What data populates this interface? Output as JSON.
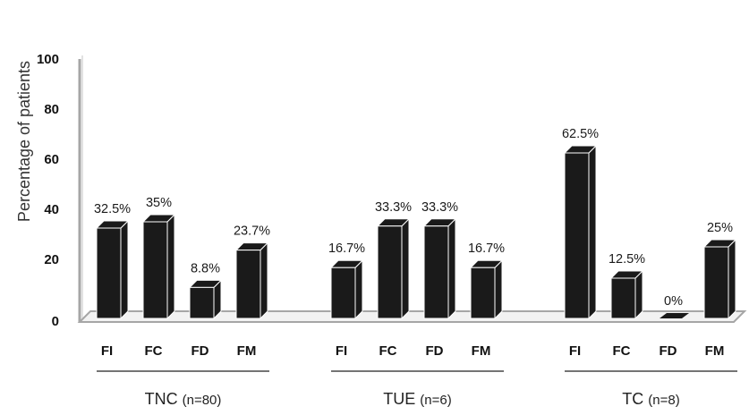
{
  "chart_data": {
    "type": "bar",
    "ylabel": "Percentage of patients",
    "ylim": [
      0,
      100
    ],
    "yticks": [
      0,
      20,
      40,
      60,
      80,
      100
    ],
    "grid": false,
    "style": "3d-bars",
    "bar_color": "#1a1a1a",
    "axis_color": "#a6a6a6",
    "groups": [
      {
        "label": "TNC",
        "n_label": "(n=80)",
        "categories": [
          "FI",
          "FC",
          "FD",
          "FM"
        ],
        "values": [
          32.5,
          35,
          8.8,
          23.7
        ],
        "value_labels": [
          "32.5%",
          "35%",
          "8.8%",
          "23.7%"
        ]
      },
      {
        "label": "TUE",
        "n_label": "(n=6)",
        "categories": [
          "FI",
          "FC",
          "FD",
          "FM"
        ],
        "values": [
          16.7,
          33.3,
          33.3,
          16.7
        ],
        "value_labels": [
          "16.7%",
          "33.3%",
          "33.3%",
          "16.7%"
        ]
      },
      {
        "label": "TC",
        "n_label": "(n=8)",
        "categories": [
          "FI",
          "FC",
          "FD",
          "FM"
        ],
        "values": [
          62.5,
          12.5,
          0,
          25
        ],
        "value_labels": [
          "62.5%",
          "12.5%",
          "0%",
          "25%"
        ]
      }
    ]
  }
}
